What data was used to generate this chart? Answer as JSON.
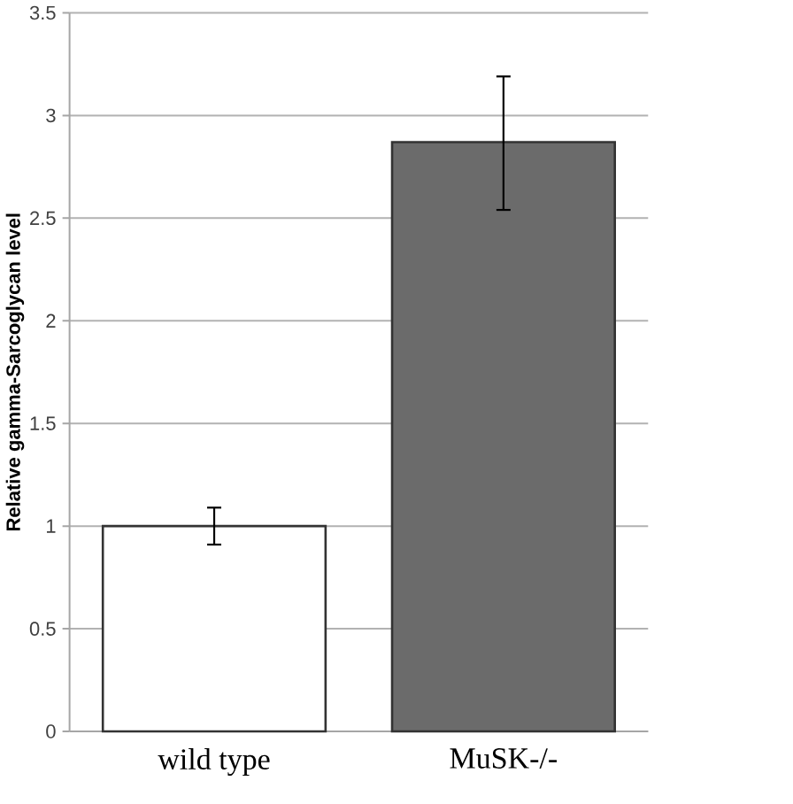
{
  "chart_data": {
    "type": "bar",
    "ylabel": "Relative gamma-Sarcoglycan level",
    "categories": [
      "wild type",
      "MuSK-/-"
    ],
    "values": [
      1.0,
      2.87
    ],
    "errors": [
      [
        0.91,
        1.09
      ],
      [
        2.54,
        3.19
      ]
    ],
    "colors": [
      "#ffffff",
      "#6b6b6b"
    ],
    "ylim": [
      0,
      3.5
    ],
    "yticks": [
      0,
      0.5,
      1,
      1.5,
      2,
      2.5,
      3,
      3.5
    ],
    "grid": "y"
  }
}
